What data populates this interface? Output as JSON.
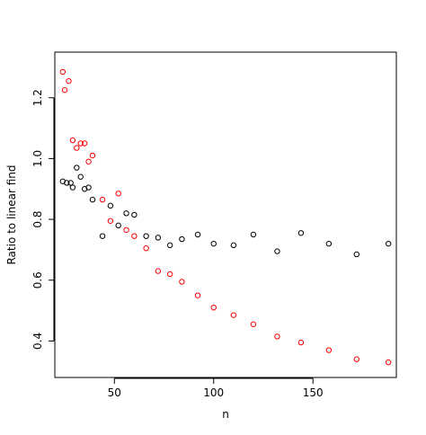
{
  "chart_data": {
    "type": "scatter",
    "title": "",
    "xlabel": "n",
    "ylabel": "Ratio to linear find",
    "xlim": [
      20,
      192
    ],
    "ylim": [
      0.28,
      1.35
    ],
    "x_ticks": [
      50,
      100,
      150
    ],
    "y_ticks": [
      0.4,
      0.6,
      0.8,
      1.0,
      1.2
    ],
    "x_tick_labels": [
      "50",
      "100",
      "150"
    ],
    "y_tick_labels": [
      "0.4",
      "0.6",
      "0.8",
      "1.0",
      "1.2"
    ],
    "grid": false,
    "legend": "none",
    "series": [
      {
        "color": "#000000",
        "points": [
          [
            24,
            0.925
          ],
          [
            26,
            0.92
          ],
          [
            28,
            0.92
          ],
          [
            29,
            0.905
          ],
          [
            31,
            0.97
          ],
          [
            33,
            0.94
          ],
          [
            35,
            0.9
          ],
          [
            37,
            0.905
          ],
          [
            39,
            0.865
          ],
          [
            44,
            0.745
          ],
          [
            48,
            0.845
          ],
          [
            52,
            0.78
          ],
          [
            56,
            0.82
          ],
          [
            60,
            0.815
          ],
          [
            66,
            0.745
          ],
          [
            72,
            0.74
          ],
          [
            78,
            0.715
          ],
          [
            84,
            0.735
          ],
          [
            92,
            0.75
          ],
          [
            100,
            0.72
          ],
          [
            110,
            0.715
          ],
          [
            120,
            0.75
          ],
          [
            132,
            0.695
          ],
          [
            144,
            0.755
          ],
          [
            158,
            0.72
          ],
          [
            172,
            0.685
          ],
          [
            188,
            0.72
          ]
        ]
      },
      {
        "color": "#ff0000",
        "points": [
          [
            24,
            1.285
          ],
          [
            25,
            1.225
          ],
          [
            27,
            1.255
          ],
          [
            29,
            1.06
          ],
          [
            31,
            1.035
          ],
          [
            33,
            1.05
          ],
          [
            35,
            1.05
          ],
          [
            37,
            0.99
          ],
          [
            39,
            1.01
          ],
          [
            44,
            0.865
          ],
          [
            48,
            0.795
          ],
          [
            52,
            0.885
          ],
          [
            56,
            0.765
          ],
          [
            60,
            0.745
          ],
          [
            66,
            0.705
          ],
          [
            72,
            0.63
          ],
          [
            78,
            0.62
          ],
          [
            84,
            0.595
          ],
          [
            92,
            0.55
          ],
          [
            100,
            0.51
          ],
          [
            110,
            0.485
          ],
          [
            120,
            0.455
          ],
          [
            132,
            0.415
          ],
          [
            144,
            0.395
          ],
          [
            158,
            0.37
          ],
          [
            172,
            0.34
          ],
          [
            188,
            0.33
          ]
        ]
      }
    ]
  }
}
